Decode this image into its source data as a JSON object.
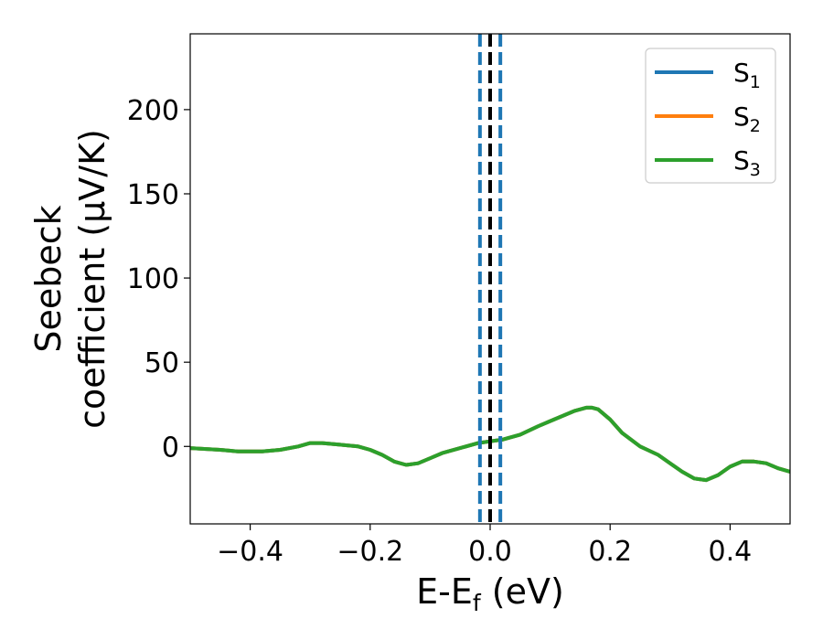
{
  "chart_data": {
    "type": "line",
    "xlabel": {
      "base": "E-E",
      "sub": "f",
      "suffix": " (eV)"
    },
    "ylabel": {
      "line1": "Seebeck",
      "line2": "coefficient  (μV/K)"
    },
    "xlim": [
      -0.5,
      0.5
    ],
    "ylim": [
      -46,
      245
    ],
    "x_ticks": [
      -0.4,
      -0.2,
      0.0,
      0.2,
      0.4
    ],
    "x_tick_labels": [
      "−0.4",
      "−0.2",
      "0.0",
      "0.2",
      "0.4"
    ],
    "y_ticks": [
      0,
      50,
      100,
      150,
      200
    ],
    "y_tick_labels": [
      "0",
      "50",
      "100",
      "150",
      "200"
    ],
    "grid": false,
    "legend_position": "upper right",
    "series": [
      {
        "name": "S1",
        "name_base": "S",
        "name_sub": "1",
        "color": "#1f77b4",
        "x": [
          -0.5,
          -0.45,
          -0.42,
          -0.38,
          -0.35,
          -0.32,
          -0.3,
          -0.28,
          -0.25,
          -0.22,
          -0.2,
          -0.18,
          -0.16,
          -0.14,
          -0.12,
          -0.1,
          -0.08,
          -0.05,
          -0.02,
          0.0,
          0.02,
          0.05,
          0.08,
          0.1,
          0.12,
          0.14,
          0.16,
          0.17,
          0.18,
          0.2,
          0.22,
          0.25,
          0.28,
          0.3,
          0.32,
          0.34,
          0.36,
          0.38,
          0.4,
          0.42,
          0.44,
          0.46,
          0.48,
          0.5
        ],
        "y": [
          -1,
          -2,
          -3,
          -3,
          -2,
          0,
          2,
          2,
          1,
          0,
          -2,
          -5,
          -9,
          -11,
          -10,
          -7,
          -4,
          -1,
          2,
          3,
          4,
          7,
          12,
          15,
          18,
          21,
          23,
          23,
          22,
          16,
          8,
          0,
          -5,
          -10,
          -15,
          -19,
          -20,
          -17,
          -12,
          -9,
          -9,
          -10,
          -13,
          -15
        ]
      },
      {
        "name": "S2",
        "name_base": "S",
        "name_sub": "2",
        "color": "#ff7f0e",
        "x": [
          -0.5,
          -0.45,
          -0.42,
          -0.38,
          -0.35,
          -0.32,
          -0.3,
          -0.28,
          -0.25,
          -0.22,
          -0.2,
          -0.18,
          -0.16,
          -0.14,
          -0.12,
          -0.1,
          -0.08,
          -0.05,
          -0.02,
          0.0,
          0.02,
          0.05,
          0.08,
          0.1,
          0.12,
          0.14,
          0.16,
          0.17,
          0.18,
          0.2,
          0.22,
          0.25,
          0.28,
          0.3,
          0.32,
          0.34,
          0.36,
          0.38,
          0.4,
          0.42,
          0.44,
          0.46,
          0.48,
          0.5
        ],
        "y": [
          -1,
          -2,
          -3,
          -3,
          -2,
          0,
          2,
          2,
          1,
          0,
          -2,
          -5,
          -9,
          -11,
          -10,
          -7,
          -4,
          -1,
          2,
          3,
          4,
          7,
          12,
          15,
          18,
          21,
          23,
          23,
          22,
          16,
          8,
          0,
          -5,
          -10,
          -15,
          -19,
          -20,
          -17,
          -12,
          -9,
          -9,
          -10,
          -13,
          -15
        ]
      },
      {
        "name": "S3",
        "name_base": "S",
        "name_sub": "3",
        "color": "#2ca02c",
        "x": [
          -0.5,
          -0.45,
          -0.42,
          -0.38,
          -0.35,
          -0.32,
          -0.3,
          -0.28,
          -0.25,
          -0.22,
          -0.2,
          -0.18,
          -0.16,
          -0.14,
          -0.12,
          -0.1,
          -0.08,
          -0.05,
          -0.02,
          0.0,
          0.02,
          0.05,
          0.08,
          0.1,
          0.12,
          0.14,
          0.16,
          0.17,
          0.18,
          0.2,
          0.22,
          0.25,
          0.28,
          0.3,
          0.32,
          0.34,
          0.36,
          0.38,
          0.4,
          0.42,
          0.44,
          0.46,
          0.48,
          0.5
        ],
        "y": [
          -1,
          -2,
          -3,
          -3,
          -2,
          0,
          2,
          2,
          1,
          0,
          -2,
          -5,
          -9,
          -11,
          -10,
          -7,
          -4,
          -1,
          2,
          3,
          4,
          7,
          12,
          15,
          18,
          21,
          23,
          23,
          22,
          16,
          8,
          0,
          -5,
          -10,
          -15,
          -19,
          -20,
          -17,
          -12,
          -9,
          -9,
          -10,
          -13,
          -15
        ]
      }
    ],
    "vertical_lines": [
      {
        "x": -0.017,
        "color": "#1f77b4",
        "style": "dashed"
      },
      {
        "x": 0.0,
        "color": "#000000",
        "style": "dashed"
      },
      {
        "x": 0.017,
        "color": "#1f77b4",
        "style": "dashed"
      }
    ]
  }
}
